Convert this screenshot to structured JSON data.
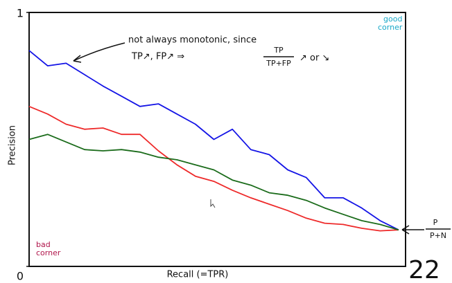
{
  "chart_data": {
    "type": "line",
    "y_label": "Precision",
    "x_label": "Recall (=TPR)",
    "xlim": [
      0,
      1
    ],
    "ylim": [
      0,
      1
    ],
    "yticks": [
      0,
      1
    ],
    "x": [
      0,
      0.05,
      0.1,
      0.15,
      0.2,
      0.25,
      0.3,
      0.35,
      0.4,
      0.45,
      0.5,
      0.55,
      0.6,
      0.65,
      0.7,
      0.75,
      0.8,
      0.85,
      0.9,
      0.95,
      1
    ],
    "series": [
      {
        "name": null,
        "color": "#1414e6",
        "values": [
          0.85,
          0.79,
          0.8,
          0.755,
          0.71,
          0.67,
          0.63,
          0.64,
          0.6,
          0.56,
          0.5,
          0.54,
          0.46,
          0.44,
          0.38,
          0.35,
          0.27,
          0.27,
          0.23,
          0.18,
          0.144
        ]
      },
      {
        "name": null,
        "color": "#ee2a2a",
        "values": [
          0.63,
          0.6,
          0.56,
          0.54,
          0.545,
          0.52,
          0.52,
          0.455,
          0.4,
          0.355,
          0.335,
          0.3,
          0.27,
          0.245,
          0.22,
          0.19,
          0.17,
          0.165,
          0.15,
          0.14,
          0.144
        ]
      },
      {
        "name": null,
        "color": "#1a6b1a",
        "values": [
          0.5,
          0.52,
          0.49,
          0.46,
          0.455,
          0.46,
          0.45,
          0.43,
          0.42,
          0.4,
          0.38,
          0.34,
          0.32,
          0.29,
          0.28,
          0.26,
          0.23,
          0.205,
          0.18,
          0.165,
          0.144
        ]
      }
    ],
    "annotations": {
      "note_line1": "not always monotonic, since",
      "note_line2": "TP↗, FP↗  ⇒",
      "fraction_numerator": "TP",
      "fraction_denominator": "TP+FP",
      "note_suffix": "↗ or ↘",
      "good_corner": [
        "good",
        "corner"
      ],
      "bad_corner": [
        "bad",
        "corner"
      ],
      "baseline_numerator": "P",
      "baseline_denominator": "P+N"
    }
  },
  "slide_number": "22"
}
